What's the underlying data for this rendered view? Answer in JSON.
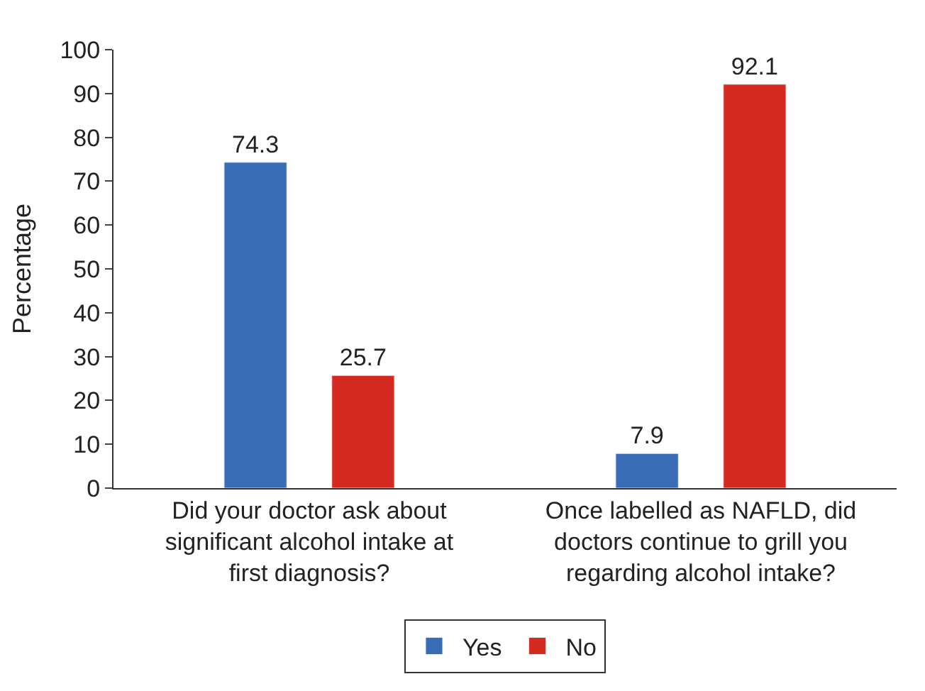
{
  "chart_data": {
    "type": "bar",
    "ylabel": "Percentage",
    "categories": [
      "Did your doctor ask about significant alcohol intake at first diagnosis?",
      "Once labelled as NAFLD, did doctors continue to grill you regarding alcohol intake?"
    ],
    "series": [
      {
        "name": "Yes",
        "color": "#3a6cb5",
        "values": [
          74.3,
          7.9
        ]
      },
      {
        "name": "No",
        "color": "#d42a20",
        "values": [
          25.7,
          92.1
        ]
      }
    ],
    "ylim": [
      0,
      100
    ],
    "yticks": [
      0,
      10,
      20,
      30,
      40,
      50,
      60,
      70,
      80,
      90,
      100
    ],
    "legend": "bottom",
    "data_labels": true
  }
}
